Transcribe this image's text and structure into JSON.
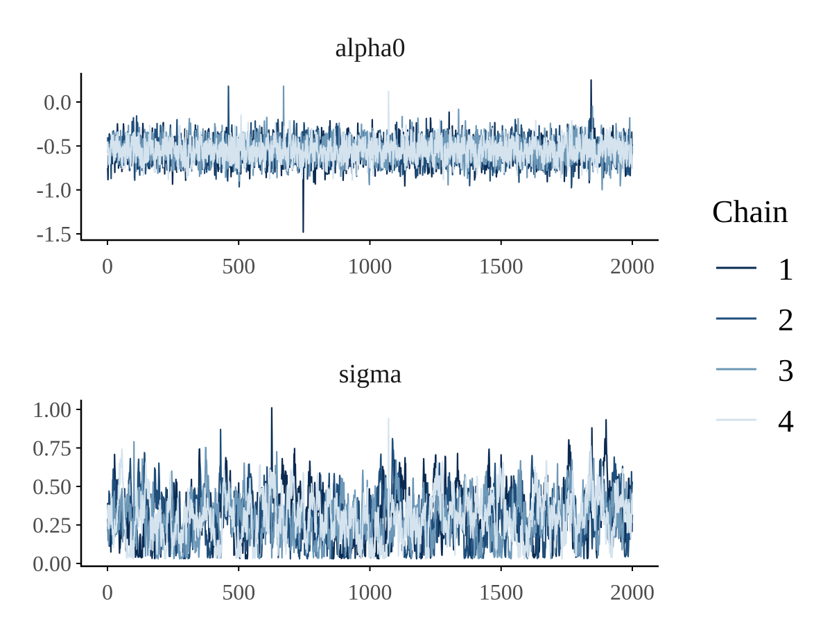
{
  "chart_data": [
    {
      "type": "line",
      "title": "alpha0",
      "x_ticks": [
        "0",
        "500",
        "1000",
        "1500",
        "2000"
      ],
      "y_ticks": [
        "0.0",
        "-0.5",
        "-1.0",
        "-1.5"
      ],
      "xlim": [
        0,
        2000
      ],
      "ylim": [
        -1.55,
        0.28
      ],
      "grid": false,
      "n_iterations": 2000,
      "series_summary": [
        {
          "chain": "1",
          "center": -0.55,
          "spread": 0.19,
          "notable_points": [
            {
              "x": 1842,
              "y": 0.25
            },
            {
              "x": 745,
              "y": -1.48
            }
          ]
        },
        {
          "chain": "2",
          "center": -0.55,
          "spread": 0.18,
          "notable_points": [
            {
              "x": 460,
              "y": 0.18
            }
          ]
        },
        {
          "chain": "3",
          "center": -0.55,
          "spread": 0.18,
          "notable_points": [
            {
              "x": 670,
              "y": 0.18
            }
          ]
        },
        {
          "chain": "4",
          "center": -0.55,
          "spread": 0.16,
          "notable_points": [
            {
              "x": 1070,
              "y": 0.12
            }
          ]
        }
      ]
    },
    {
      "type": "line",
      "title": "sigma",
      "x_ticks": [
        "0",
        "500",
        "1000",
        "1500",
        "2000"
      ],
      "y_ticks": [
        "1.00",
        "0.75",
        "0.50",
        "0.25",
        "0.00"
      ],
      "xlim": [
        0,
        2000
      ],
      "ylim": [
        -0.01,
        1.05
      ],
      "grid": false,
      "n_iterations": 2000,
      "series_summary": [
        {
          "chain": "1",
          "center": 0.3,
          "spread": 0.17,
          "notable_points": [
            {
              "x": 625,
              "y": 1.01
            },
            {
              "x": 1845,
              "y": 0.88
            }
          ]
        },
        {
          "chain": "2",
          "center": 0.3,
          "spread": 0.16,
          "notable_points": [
            {
              "x": 430,
              "y": 0.87
            }
          ]
        },
        {
          "chain": "3",
          "center": 0.3,
          "spread": 0.15,
          "notable_points": [
            {
              "x": 100,
              "y": 0.79
            }
          ]
        },
        {
          "chain": "4",
          "center": 0.3,
          "spread": 0.14,
          "notable_points": [
            {
              "x": 1070,
              "y": 0.94
            }
          ]
        }
      ]
    }
  ],
  "legend": {
    "title": "Chain",
    "position": "right",
    "items": [
      {
        "label": "1",
        "color": "#0a2a52"
      },
      {
        "label": "2",
        "color": "#1f4e7a"
      },
      {
        "label": "3",
        "color": "#6d98b8"
      },
      {
        "label": "4",
        "color": "#d4e3ee"
      }
    ]
  }
}
